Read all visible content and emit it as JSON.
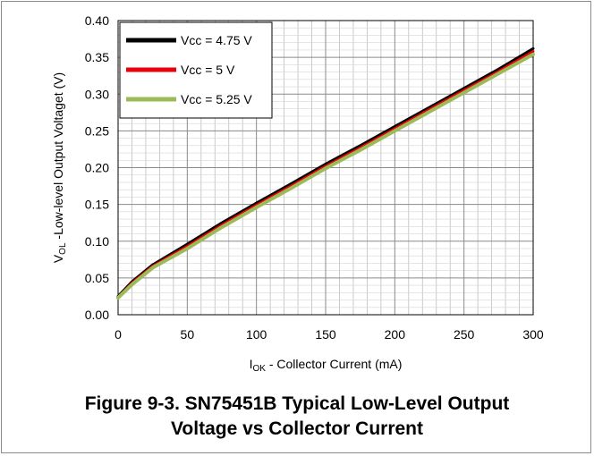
{
  "chart_data": {
    "type": "line",
    "x": [
      0,
      10,
      25,
      50,
      75,
      100,
      125,
      150,
      175,
      200,
      225,
      250,
      275,
      300
    ],
    "series": [
      {
        "name": "Vcc = 4.75 V",
        "color": "#000000",
        "values": [
          0.025,
          0.045,
          0.068,
          0.096,
          0.125,
          0.152,
          0.178,
          0.205,
          0.23,
          0.256,
          0.282,
          0.308,
          0.334,
          0.362
        ]
      },
      {
        "name": "Vcc = 5 V",
        "color": "#e8000b",
        "values": [
          0.024,
          0.043,
          0.066,
          0.093,
          0.122,
          0.149,
          0.175,
          0.202,
          0.227,
          0.253,
          0.279,
          0.305,
          0.331,
          0.358
        ]
      },
      {
        "name": "Vcc = 5.25 V",
        "color": "#9bbb59",
        "values": [
          0.023,
          0.041,
          0.064,
          0.09,
          0.119,
          0.146,
          0.172,
          0.199,
          0.224,
          0.25,
          0.276,
          0.302,
          0.328,
          0.354
        ]
      }
    ],
    "xlim": [
      0,
      300
    ],
    "ylim": [
      0,
      0.4
    ],
    "x_ticks": [
      "0",
      "50",
      "100",
      "150",
      "200",
      "250",
      "300"
    ],
    "y_ticks": [
      "0.00",
      "0.05",
      "0.10",
      "0.15",
      "0.20",
      "0.25",
      "0.30",
      "0.35",
      "0.40"
    ],
    "xlabel": {
      "main": "I",
      "sub": "OK",
      "rest": " - Collector Current (mA)"
    },
    "ylabel": {
      "main": "V",
      "sub": "OL",
      "rest": " -Low-level Output Voltaget (V)"
    },
    "grid": true,
    "legend_position": "top-left"
  },
  "caption": {
    "line1": "Figure 9-3. SN75451B Typical Low-Level Output",
    "line2": "Voltage vs Collector Current"
  }
}
